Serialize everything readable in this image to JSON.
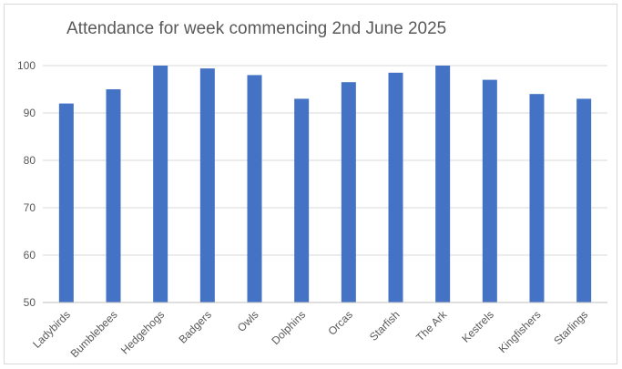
{
  "chart_data": {
    "type": "bar",
    "title": "Attendance for week commencing 2nd June 2025",
    "xlabel": "",
    "ylabel": "",
    "categories": [
      "Ladybirds",
      "Bumblebees",
      "Hedgehogs",
      "Badgers",
      "Owls",
      "Dolphins",
      "Orcas",
      "Starfish",
      "The Ark",
      "Kestrels",
      "Kingfishers",
      "Starlings"
    ],
    "values": [
      92,
      95,
      100,
      99.4,
      98,
      93,
      96.5,
      98.5,
      100,
      97,
      94,
      93
    ],
    "ylim": [
      50,
      100
    ],
    "yticks": [
      50,
      60,
      70,
      80,
      90,
      100
    ],
    "grid": true,
    "legend": "none",
    "bar_color": "#4472c4"
  }
}
